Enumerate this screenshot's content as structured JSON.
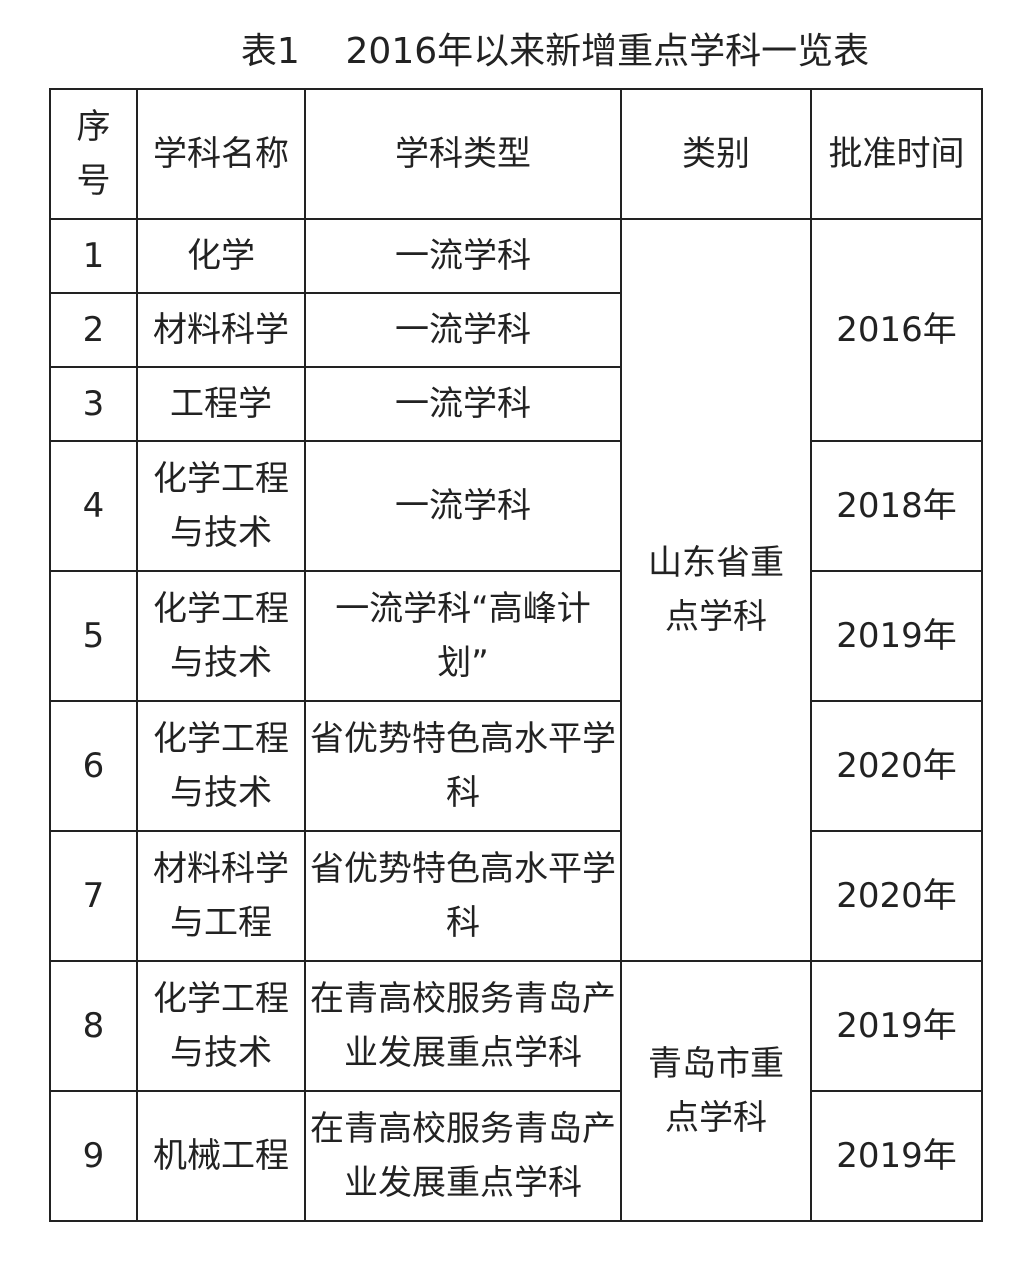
{
  "title": "表1    2016年以来新增重点学科一览表",
  "headers": [
    "序号",
    "学科名称",
    "学科类型",
    "类别",
    "批准时间"
  ],
  "rows": [
    {
      "no": "1",
      "name": "化学",
      "type": "一流学科",
      "category": "山东省重点学科",
      "year": "2016年"
    },
    {
      "no": "2",
      "name": "材料科学",
      "type": "一流学科"
    },
    {
      "no": "3",
      "name": "工程学",
      "type": "一流学科"
    },
    {
      "no": "4",
      "name": "化学工程与技术",
      "type": "一流学科",
      "year": "2018年"
    },
    {
      "no": "5",
      "name": "化学工程与技术",
      "type": "一流学科“高峰计划”",
      "year": "2019年"
    },
    {
      "no": "6",
      "name": "化学工程与技术",
      "type": "省优势特色高水平学科",
      "year": "2020年"
    },
    {
      "no": "7",
      "name": "材料科学与工程",
      "type": "省优势特色高水平学科",
      "year": "2020年"
    },
    {
      "no": "8",
      "name": "化学工程与技术",
      "type": "在青高校服务青岛产业发展重点学科",
      "category": "青岛市重点学科",
      "year": "2019年"
    },
    {
      "no": "9",
      "name": "机械工程",
      "type": "在青高校服务青岛产业发展重点学科",
      "year": "2019年"
    }
  ]
}
